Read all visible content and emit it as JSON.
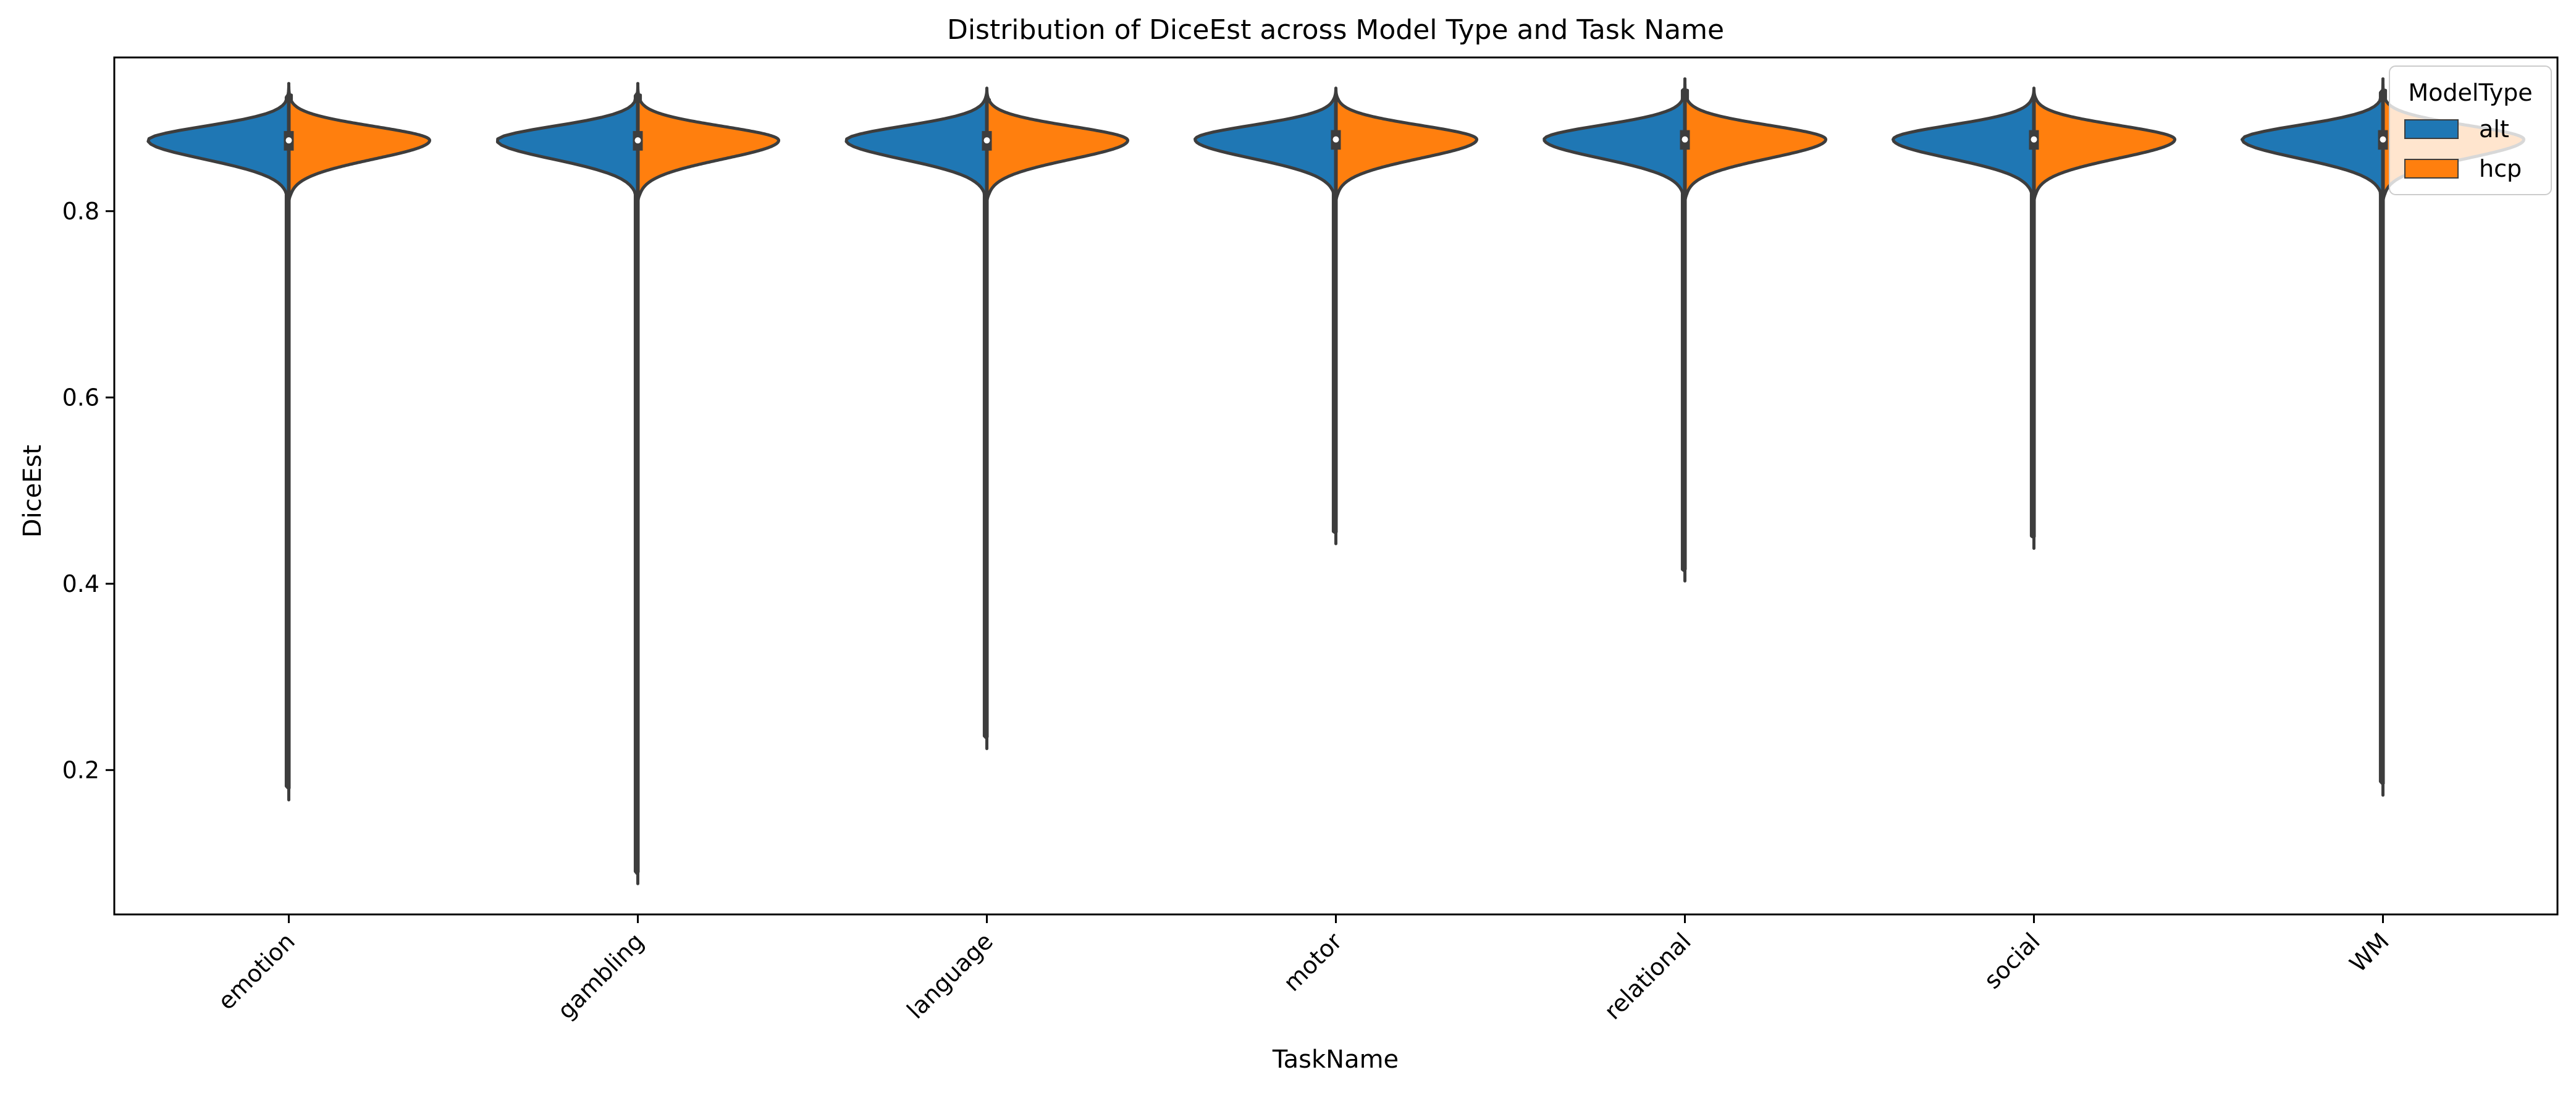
{
  "chart_data": {
    "type": "violin",
    "title": "Distribution of DiceEst across Model Type and Task Name",
    "xlabel": "TaskName",
    "ylabel": "DiceEst",
    "categories": [
      "emotion",
      "gambling",
      "language",
      "motor",
      "relational",
      "social",
      "WM"
    ],
    "y_ticks": [
      "0.2",
      "0.4",
      "0.6",
      "0.8"
    ],
    "ylim": [
      0.045,
      0.965
    ],
    "split": true,
    "legend": {
      "title": "ModelType",
      "position": "top-right",
      "entries": [
        {
          "label": "alt",
          "color": "#1f77b4"
        },
        {
          "label": "hcp",
          "color": "#ff7f0e"
        }
      ]
    },
    "series": [
      {
        "name": "alt",
        "color": "#1f77b4",
        "min": [
          0.18,
          0.09,
          0.235,
          0.455,
          0.415,
          0.45,
          0.185
        ],
        "q1": [
          0.865,
          0.865,
          0.865,
          0.866,
          0.866,
          0.866,
          0.866
        ],
        "median": [
          0.876,
          0.876,
          0.876,
          0.877,
          0.877,
          0.877,
          0.877
        ],
        "q3": [
          0.886,
          0.886,
          0.886,
          0.887,
          0.887,
          0.887,
          0.887
        ],
        "max": [
          0.925,
          0.925,
          0.92,
          0.92,
          0.93,
          0.92,
          0.93
        ]
      },
      {
        "name": "hcp",
        "color": "#ff7f0e",
        "min": [
          0.82,
          0.82,
          0.82,
          0.82,
          0.82,
          0.82,
          0.82
        ],
        "q1": [
          0.865,
          0.866,
          0.866,
          0.866,
          0.866,
          0.866,
          0.866
        ],
        "median": [
          0.876,
          0.876,
          0.876,
          0.877,
          0.877,
          0.877,
          0.877
        ],
        "q3": [
          0.886,
          0.886,
          0.886,
          0.887,
          0.887,
          0.887,
          0.887
        ],
        "max": [
          0.925,
          0.925,
          0.92,
          0.92,
          0.93,
          0.92,
          0.93
        ]
      }
    ]
  }
}
